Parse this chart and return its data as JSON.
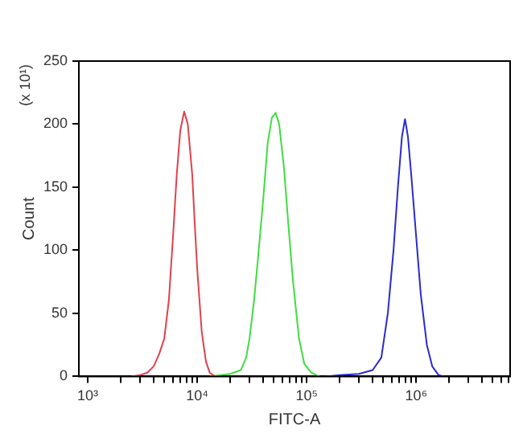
{
  "chart_data": {
    "type": "line",
    "xlabel": "FITC-A",
    "ylabel": "Count",
    "annotations": [
      "(x 10¹)"
    ],
    "log": "x",
    "grid": false,
    "legend": false,
    "marker": "none",
    "line_style": "solid",
    "xlim": [
      830,
      7200000
    ],
    "ylim": [
      0,
      250
    ],
    "yticks": [
      0,
      50,
      100,
      150,
      200,
      250
    ],
    "xticks": [
      {
        "value": 1000,
        "label": "10³"
      },
      {
        "value": 2000,
        "label": null
      },
      {
        "value": 3000,
        "label": null
      },
      {
        "value": 4000,
        "label": null
      },
      {
        "value": 5000,
        "label": null
      },
      {
        "value": 6000,
        "label": null
      },
      {
        "value": 7000,
        "label": null
      },
      {
        "value": 8000,
        "label": null
      },
      {
        "value": 9000,
        "label": null
      },
      {
        "value": 10000,
        "label": "10⁴"
      },
      {
        "value": 20000,
        "label": null
      },
      {
        "value": 30000,
        "label": null
      },
      {
        "value": 40000,
        "label": null
      },
      {
        "value": 50000,
        "label": null
      },
      {
        "value": 60000,
        "label": null
      },
      {
        "value": 70000,
        "label": null
      },
      {
        "value": 80000,
        "label": null
      },
      {
        "value": 90000,
        "label": null
      },
      {
        "value": 100000,
        "label": "10⁵"
      },
      {
        "value": 200000,
        "label": null
      },
      {
        "value": 300000,
        "label": null
      },
      {
        "value": 400000,
        "label": null
      },
      {
        "value": 500000,
        "label": null
      },
      {
        "value": 600000,
        "label": null
      },
      {
        "value": 700000,
        "label": null
      },
      {
        "value": 800000,
        "label": null
      },
      {
        "value": 900000,
        "label": null
      },
      {
        "value": 1000000,
        "label": "10⁶"
      },
      {
        "value": 2000000,
        "label": null
      },
      {
        "value": 3000000,
        "label": null
      },
      {
        "value": 4000000,
        "label": null
      },
      {
        "value": 5000000,
        "label": null
      },
      {
        "value": 6000000,
        "label": null
      },
      {
        "value": 7000000,
        "label": null
      }
    ],
    "series": [
      {
        "color": "#e0404c",
        "x": [
          2500,
          3000,
          3500,
          4000,
          4500,
          5000,
          5500,
          6000,
          6500,
          7000,
          7600,
          8200,
          9000,
          9500,
          10000,
          11000,
          12000,
          13000,
          14500
        ],
        "values": [
          0,
          1,
          3,
          8,
          18,
          30,
          60,
          110,
          160,
          195,
          210,
          200,
          160,
          120,
          85,
          35,
          12,
          3,
          0
        ]
      },
      {
        "color": "#40dd40",
        "x": [
          13000,
          20000,
          25000,
          28000,
          30000,
          33000,
          36000,
          40000,
          44000,
          48000,
          52000,
          56000,
          62000,
          68000,
          75000,
          85000,
          95000,
          110000,
          130000
        ],
        "values": [
          0,
          2,
          5,
          15,
          30,
          60,
          95,
          140,
          185,
          205,
          209,
          200,
          165,
          120,
          75,
          30,
          10,
          3,
          0
        ]
      },
      {
        "color": "#2a2ad0",
        "x": [
          150000,
          200000,
          300000,
          400000,
          480000,
          550000,
          620000,
          680000,
          740000,
          790000,
          840000,
          900000,
          1000000,
          1100000,
          1250000,
          1400000,
          1600000,
          1800000
        ],
        "values": [
          0,
          1,
          2,
          5,
          15,
          50,
          100,
          150,
          190,
          204,
          190,
          160,
          110,
          65,
          25,
          8,
          1,
          0
        ]
      }
    ]
  }
}
